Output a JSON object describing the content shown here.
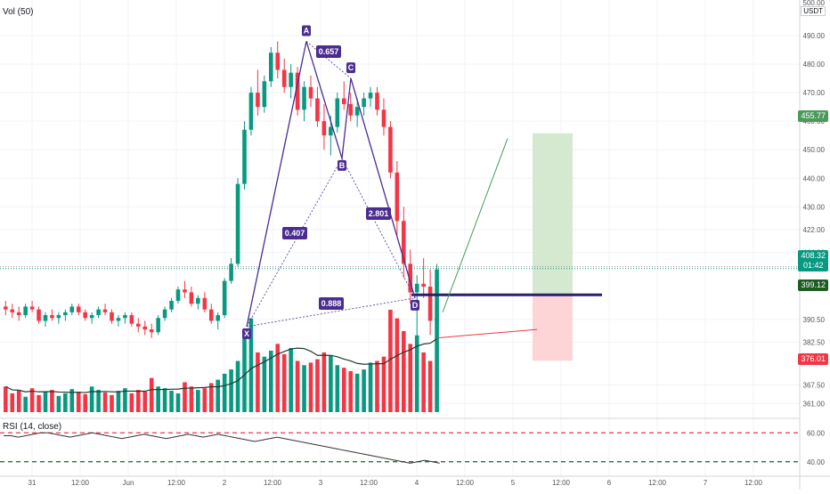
{
  "chart_data": {
    "type": "candlestick",
    "volume_label": "Vol (50)",
    "currency_label": "USDT",
    "top_price_label": "500.00",
    "price_ticks": [
      "490.00",
      "480.00",
      "470.00",
      "460.00",
      "450.00",
      "440.00",
      "430.00",
      "422.00",
      "414.00",
      "390.50",
      "382.50",
      "367.50",
      "361.00"
    ],
    "time_ticks": [
      "31",
      "12:00",
      "Jun",
      "12:00",
      "2",
      "12:00",
      "3",
      "12:00",
      "4",
      "12:00",
      "5",
      "12:00",
      "6",
      "12:00",
      "7",
      "12:00"
    ],
    "current_price": {
      "value": "408.32",
      "timer": "01:42",
      "color": "#089981"
    },
    "level_tags": [
      {
        "value": "455.77",
        "color": "#4c9a5a"
      },
      {
        "value": "399.12",
        "color": "#1b5e20"
      },
      {
        "value": "376.01",
        "color": "#f23645"
      }
    ],
    "harmonic_pattern": {
      "points": [
        {
          "label": "X",
          "price": 388
        },
        {
          "label": "A",
          "price": 488
        },
        {
          "label": "B",
          "price": 447
        },
        {
          "label": "C",
          "price": 475
        },
        {
          "label": "D",
          "price": 398
        }
      ],
      "ratios": [
        "0.657",
        "0.407",
        "2.801",
        "0.888"
      ],
      "color": "#4a2d8f"
    },
    "position": {
      "entry": 399.12,
      "target": 455.77,
      "stop": 376.01
    },
    "rsi": {
      "label": "RSI (14, close)",
      "upper": "60.00",
      "lower": "40.00",
      "values": [
        58,
        58,
        57,
        58,
        59,
        60,
        60,
        59,
        58,
        57,
        58,
        59,
        60,
        59,
        58,
        57,
        56,
        57,
        58,
        59,
        58,
        57,
        56,
        57,
        58,
        59,
        58,
        57,
        58,
        59,
        58,
        57,
        56,
        55,
        54,
        55,
        56,
        57,
        56,
        55,
        54,
        53,
        52,
        51,
        50,
        49,
        48,
        47,
        46,
        45,
        44,
        43,
        42,
        41,
        40,
        39,
        40,
        41,
        40,
        39
      ]
    },
    "candles": [
      [
        395,
        397,
        392,
        394
      ],
      [
        394,
        396,
        391,
        393
      ],
      [
        393,
        395,
        390,
        392
      ],
      [
        392,
        396,
        391,
        395
      ],
      [
        395,
        397,
        393,
        394
      ],
      [
        394,
        395,
        389,
        390
      ],
      [
        390,
        393,
        388,
        392
      ],
      [
        392,
        394,
        390,
        391
      ],
      [
        391,
        393,
        389,
        392
      ],
      [
        392,
        394,
        390,
        393
      ],
      [
        393,
        396,
        392,
        395
      ],
      [
        395,
        396,
        392,
        393
      ],
      [
        393,
        394,
        390,
        391
      ],
      [
        391,
        393,
        389,
        392
      ],
      [
        392,
        395,
        391,
        394
      ],
      [
        394,
        396,
        392,
        393
      ],
      [
        393,
        394,
        389,
        390
      ],
      [
        390,
        392,
        388,
        391
      ],
      [
        391,
        393,
        389,
        392
      ],
      [
        392,
        393,
        388,
        389
      ],
      [
        389,
        391,
        386,
        388
      ],
      [
        388,
        390,
        385,
        387
      ],
      [
        387,
        389,
        384,
        386
      ],
      [
        386,
        392,
        385,
        391
      ],
      [
        391,
        395,
        390,
        394
      ],
      [
        394,
        398,
        393,
        397
      ],
      [
        397,
        402,
        396,
        401
      ],
      [
        401,
        404,
        398,
        400
      ],
      [
        400,
        402,
        395,
        396
      ],
      [
        396,
        399,
        394,
        398
      ],
      [
        398,
        400,
        393,
        394
      ],
      [
        394,
        396,
        389,
        390
      ],
      [
        390,
        393,
        387,
        392
      ],
      [
        392,
        405,
        391,
        404
      ],
      [
        404,
        412,
        403,
        410
      ],
      [
        410,
        440,
        409,
        438
      ],
      [
        438,
        460,
        436,
        457
      ],
      [
        457,
        472,
        455,
        470
      ],
      [
        470,
        478,
        462,
        465
      ],
      [
        465,
        476,
        463,
        474
      ],
      [
        474,
        486,
        472,
        484
      ],
      [
        484,
        488,
        475,
        478
      ],
      [
        478,
        482,
        470,
        472
      ],
      [
        472,
        480,
        468,
        477
      ],
      [
        477,
        479,
        462,
        464
      ],
      [
        464,
        474,
        460,
        472
      ],
      [
        472,
        476,
        465,
        468
      ],
      [
        468,
        472,
        458,
        460
      ],
      [
        460,
        466,
        450,
        455
      ],
      [
        455,
        462,
        448,
        458
      ],
      [
        458,
        470,
        456,
        468
      ],
      [
        468,
        474,
        464,
        466
      ],
      [
        466,
        470,
        460,
        462
      ],
      [
        462,
        468,
        458,
        465
      ],
      [
        465,
        470,
        462,
        468
      ],
      [
        468,
        472,
        465,
        470
      ],
      [
        470,
        472,
        462,
        464
      ],
      [
        464,
        468,
        455,
        458
      ],
      [
        458,
        460,
        440,
        442
      ],
      [
        442,
        446,
        420,
        425
      ],
      [
        425,
        430,
        405,
        410
      ],
      [
        410,
        415,
        396,
        400
      ],
      [
        400,
        406,
        384,
        403
      ],
      [
        403,
        412,
        398,
        402
      ],
      [
        402,
        408,
        385,
        390
      ],
      [
        390,
        410,
        389,
        408
      ]
    ],
    "volumes": [
      30,
      22,
      25,
      18,
      28,
      20,
      24,
      26,
      19,
      22,
      27,
      24,
      21,
      30,
      26,
      23,
      20,
      25,
      28,
      22,
      26,
      24,
      40,
      30,
      28,
      25,
      22,
      35,
      30,
      26,
      28,
      34,
      38,
      45,
      50,
      60,
      90,
      110,
      70,
      65,
      72,
      80,
      68,
      75,
      60,
      55,
      58,
      62,
      70,
      66,
      55,
      52,
      48,
      45,
      50,
      58,
      60,
      65,
      120,
      110,
      95,
      80,
      90,
      70,
      60,
      110
    ]
  }
}
